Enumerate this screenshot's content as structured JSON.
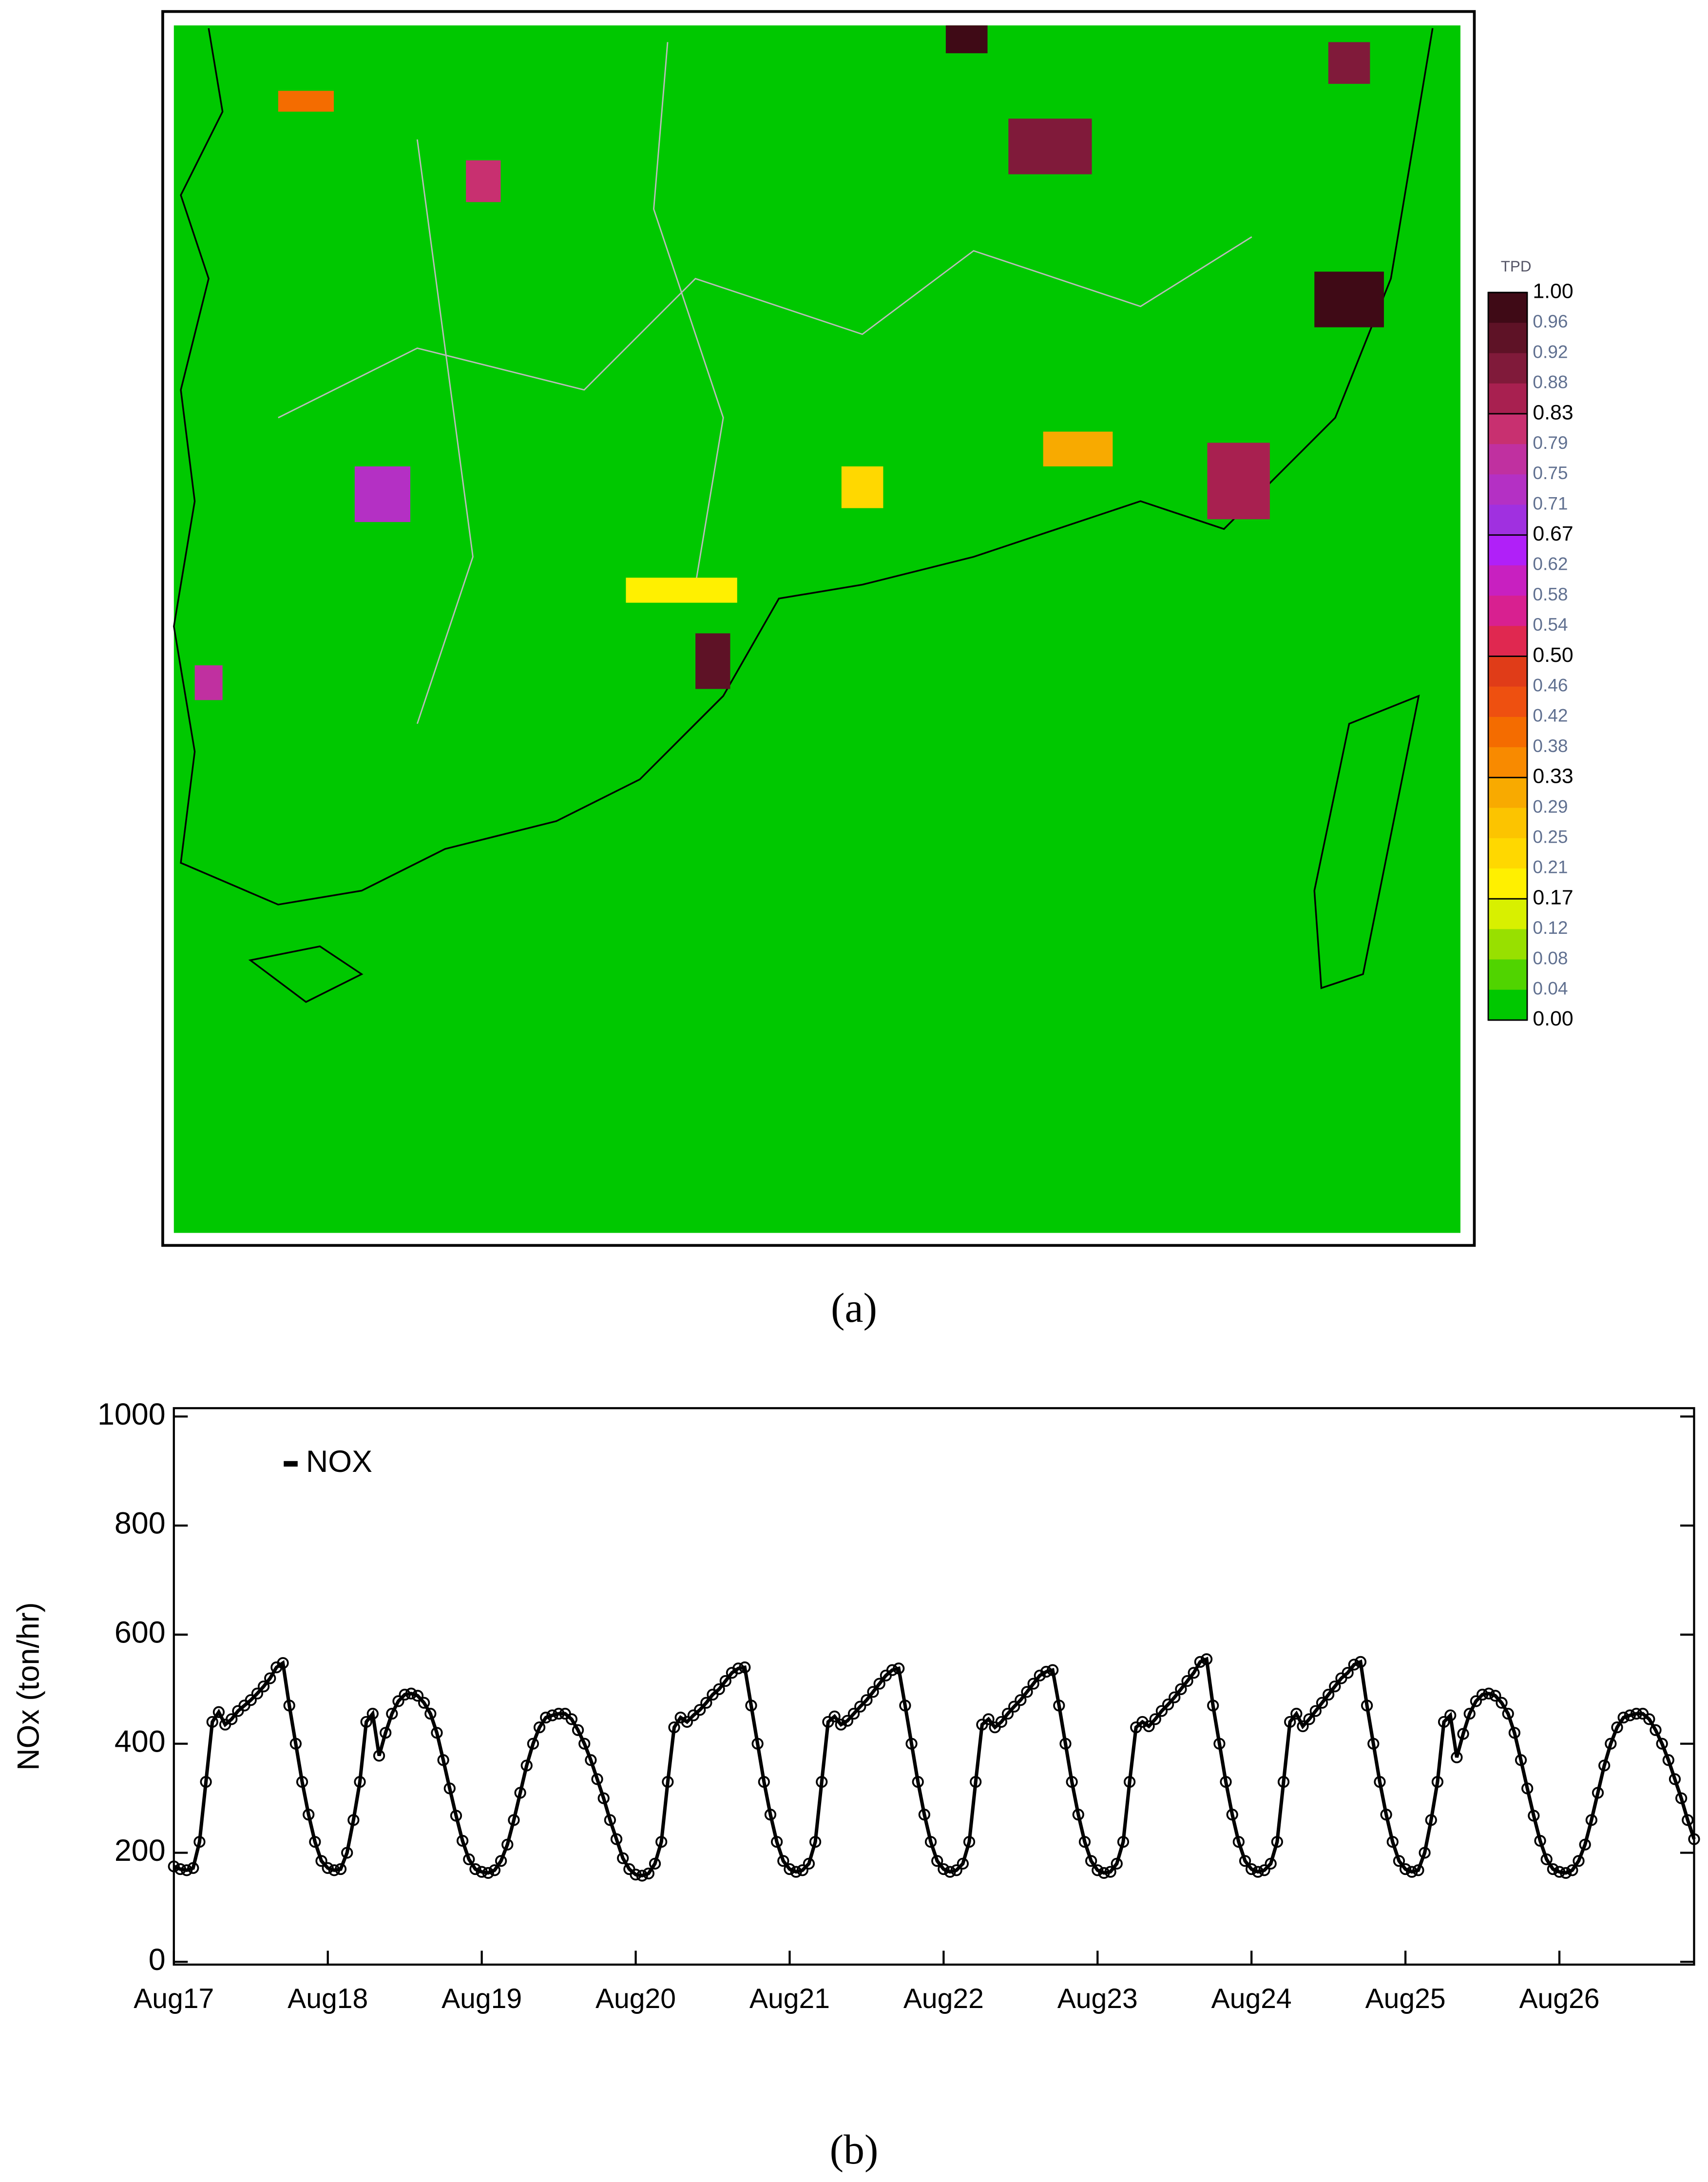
{
  "chart_data": [
    {
      "type": "map",
      "caption": "(a)",
      "colorbar": {
        "title": "TPD",
        "ticks": [
          {
            "value": 1,
            "label": "1.00"
          },
          {
            "value": 0.96,
            "label": "0.96"
          },
          {
            "value": 0.92,
            "label": "0.92"
          },
          {
            "value": 0.88,
            "label": "0.88"
          },
          {
            "value": 0.83,
            "label": "0.83"
          },
          {
            "value": 0.79,
            "label": "0.79"
          },
          {
            "value": 0.75,
            "label": "0.75"
          },
          {
            "value": 0.71,
            "label": "0.71"
          },
          {
            "value": 0.67,
            "label": "0.67"
          },
          {
            "value": 0.62,
            "label": "0.62"
          },
          {
            "value": 0.58,
            "label": "0.58"
          },
          {
            "value": 0.54,
            "label": "0.54"
          },
          {
            "value": 0.5,
            "label": "0.50"
          },
          {
            "value": 0.46,
            "label": "0.46"
          },
          {
            "value": 0.42,
            "label": "0.42"
          },
          {
            "value": 0.38,
            "label": "0.38"
          },
          {
            "value": 0.33,
            "label": "0.33"
          },
          {
            "value": 0.29,
            "label": "0.29"
          },
          {
            "value": 0.25,
            "label": "0.25"
          },
          {
            "value": 0.21,
            "label": "0.21"
          },
          {
            "value": 0.17,
            "label": "0.17"
          },
          {
            "value": 0.12,
            "label": "0.12"
          },
          {
            "value": 0.08,
            "label": "0.08"
          },
          {
            "value": 0.04,
            "label": "0.04"
          },
          {
            "value": 0,
            "label": "0.00"
          }
        ],
        "colors": [
          "#3f0a16",
          "#5e1226",
          "#801a3a",
          "#a82050",
          "#c83070",
          "#c030a0",
          "#b430c4",
          "#a030e0",
          "#b020f8",
          "#c820c0",
          "#d82090",
          "#e02850",
          "#e03c18",
          "#ee5010",
          "#f46c00",
          "#f88a00",
          "#f8aa00",
          "#fcc400",
          "#ffd800",
          "#fff000",
          "#d8f000",
          "#98e000",
          "#50d400",
          "#00c800"
        ]
      }
    },
    {
      "type": "line",
      "caption": "(b)",
      "ylabel": "NOx (ton/hr)",
      "x": [
        0,
        1,
        2,
        3,
        4,
        5,
        6,
        7,
        8,
        9,
        10,
        11,
        12,
        13,
        14,
        15,
        16,
        17,
        18,
        19,
        20,
        21,
        22,
        23,
        24,
        25,
        26,
        27,
        28,
        29,
        30,
        31,
        32,
        33,
        34,
        35,
        36,
        37,
        38,
        39,
        40,
        41,
        42,
        43,
        44,
        45,
        46,
        47,
        48,
        49,
        50,
        51,
        52,
        53,
        54,
        55,
        56,
        57,
        58,
        59,
        60,
        61,
        62,
        63,
        64,
        65,
        66,
        67,
        68,
        69,
        70,
        71,
        72,
        73,
        74,
        75,
        76,
        77,
        78,
        79,
        80,
        81,
        82,
        83,
        84,
        85,
        86,
        87,
        88,
        89,
        90,
        91,
        92,
        93,
        94,
        95,
        96,
        97,
        98,
        99,
        100,
        101,
        102,
        103,
        104,
        105,
        106,
        107,
        108,
        109,
        110,
        111,
        112,
        113,
        114,
        115,
        116,
        117,
        118,
        119,
        120,
        121,
        122,
        123,
        124,
        125,
        126,
        127,
        128,
        129,
        130,
        131,
        132,
        133,
        134,
        135,
        136,
        137,
        138,
        139,
        140,
        141,
        142,
        143,
        144,
        145,
        146,
        147,
        148,
        149,
        150,
        151,
        152,
        153,
        154,
        155,
        156,
        157,
        158,
        159,
        160,
        161,
        162,
        163,
        164,
        165,
        166,
        167,
        168,
        169,
        170,
        171,
        172,
        173,
        174,
        175,
        176,
        177,
        178,
        179,
        180,
        181,
        182,
        183,
        184,
        185,
        186,
        187,
        188,
        189,
        190,
        191,
        192,
        193,
        194,
        195,
        196,
        197,
        198,
        199,
        200,
        201,
        202,
        203,
        204,
        205,
        206,
        207,
        208,
        209,
        210,
        211,
        212,
        213,
        214,
        215,
        216,
        217,
        218,
        219,
        220,
        221,
        222,
        223,
        224,
        225,
        226,
        227,
        228,
        229,
        230,
        231,
        232,
        233,
        234,
        235,
        236,
        237
      ],
      "series": [
        {
          "name": "NOX",
          "color": "#000000",
          "values": [
            175,
            170,
            168,
            172,
            220,
            330,
            440,
            458,
            435,
            445,
            460,
            470,
            480,
            492,
            505,
            520,
            540,
            548,
            470,
            400,
            330,
            270,
            220,
            185,
            172,
            168,
            170,
            200,
            260,
            330,
            440,
            455,
            378,
            420,
            455,
            478,
            490,
            492,
            488,
            475,
            455,
            420,
            370,
            318,
            268,
            222,
            188,
            170,
            165,
            163,
            168,
            185,
            215,
            260,
            310,
            360,
            400,
            430,
            448,
            452,
            455,
            455,
            445,
            425,
            400,
            370,
            335,
            300,
            260,
            225,
            190,
            170,
            160,
            158,
            162,
            180,
            220,
            330,
            430,
            448,
            440,
            452,
            462,
            475,
            490,
            500,
            515,
            530,
            538,
            540,
            470,
            400,
            330,
            270,
            220,
            185,
            170,
            165,
            168,
            180,
            220,
            330,
            440,
            450,
            435,
            442,
            455,
            468,
            480,
            495,
            510,
            525,
            535,
            538,
            470,
            400,
            330,
            270,
            220,
            185,
            170,
            165,
            168,
            180,
            220,
            330,
            435,
            445,
            430,
            440,
            455,
            468,
            480,
            495,
            510,
            525,
            532,
            535,
            470,
            400,
            330,
            270,
            220,
            185,
            168,
            163,
            165,
            180,
            220,
            330,
            430,
            440,
            432,
            445,
            460,
            472,
            485,
            500,
            515,
            530,
            550,
            555,
            470,
            400,
            330,
            270,
            220,
            185,
            170,
            165,
            168,
            180,
            220,
            330,
            440,
            455,
            432,
            445,
            460,
            475,
            490,
            505,
            520,
            530,
            545,
            550,
            470,
            400,
            330,
            270,
            220,
            185,
            170,
            165,
            168,
            200,
            260,
            330,
            440,
            452,
            375,
            418,
            455,
            478,
            490,
            492,
            488,
            475,
            455,
            420,
            370,
            318,
            268,
            222,
            188,
            170,
            165,
            163,
            168,
            185,
            215,
            260,
            310,
            360,
            400,
            430,
            448,
            452,
            455,
            455,
            445,
            425,
            400,
            370,
            335,
            300,
            260,
            225
          ]
        }
      ],
      "xlim": [
        0,
        237
      ],
      "ylim": [
        0,
        1000
      ],
      "xticks": [
        {
          "value": 0,
          "label": "Aug17"
        },
        {
          "value": 24,
          "label": "Aug18"
        },
        {
          "value": 48,
          "label": "Aug19"
        },
        {
          "value": 72,
          "label": "Aug20"
        },
        {
          "value": 96,
          "label": "Aug21"
        },
        {
          "value": 120,
          "label": "Aug22"
        },
        {
          "value": 144,
          "label": "Aug23"
        },
        {
          "value": 168,
          "label": "Aug24"
        },
        {
          "value": 192,
          "label": "Aug25"
        },
        {
          "value": 216,
          "label": "Aug26"
        }
      ],
      "yticks": [
        0,
        200,
        400,
        600,
        800,
        1000
      ]
    }
  ]
}
